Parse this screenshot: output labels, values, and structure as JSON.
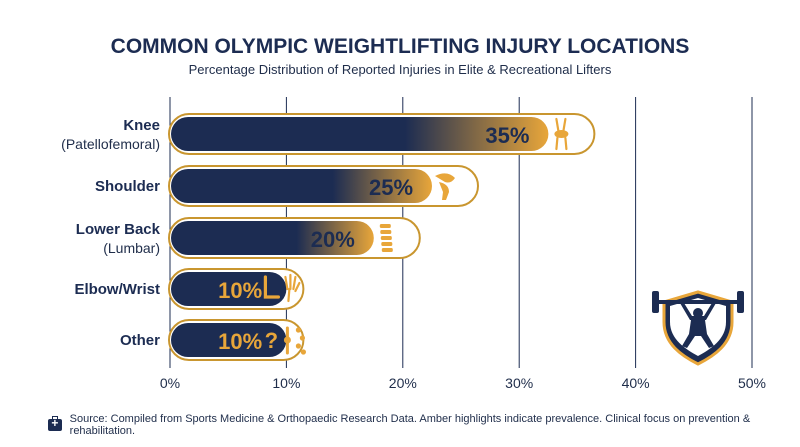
{
  "chart_data": {
    "type": "bar",
    "orientation": "horizontal",
    "title": "COMMON OLYMPIC WEIGHTLIFTING INJURY LOCATIONS",
    "subtitle": "Percentage Distribution of Reported Injuries in Elite & Recreational Lifters",
    "categories": [
      {
        "name": "Knee",
        "sub": "(Patellofemoral)",
        "icon": "knee-joint-icon"
      },
      {
        "name": "Shoulder",
        "sub": "",
        "icon": "shoulder-joint-icon"
      },
      {
        "name": "Lower Back",
        "sub": "(Lumbar)",
        "icon": "spine-icon"
      },
      {
        "name": "Elbow/Wrist",
        "sub": "",
        "icon": "elbow-wrist-icon"
      },
      {
        "name": "Other",
        "sub": "",
        "icon": "question-joints-icon"
      }
    ],
    "values": [
      35,
      25,
      20,
      10,
      10
    ],
    "value_labels": [
      "35%",
      "25%",
      "20%",
      "10%",
      "10%"
    ],
    "xlim": [
      0,
      50
    ],
    "x_ticks": [
      0,
      10,
      20,
      30,
      40,
      50
    ],
    "x_tick_labels": [
      "0%",
      "10%",
      "20%",
      "30%",
      "40%",
      "50%"
    ],
    "grid": true,
    "colors": {
      "bar": "#1c2c52",
      "accent": "#e8a63a",
      "frame": "#c9962f"
    }
  },
  "logo": {
    "name": "weightlifter-shield-logo"
  },
  "footer": {
    "icon": "first-aid-kit-icon",
    "text": "Source: Compiled from Sports Medicine & Orthopaedic Research Data. Amber highlights indicate prevalence. Clinical focus on prevention & rehabilitation."
  }
}
